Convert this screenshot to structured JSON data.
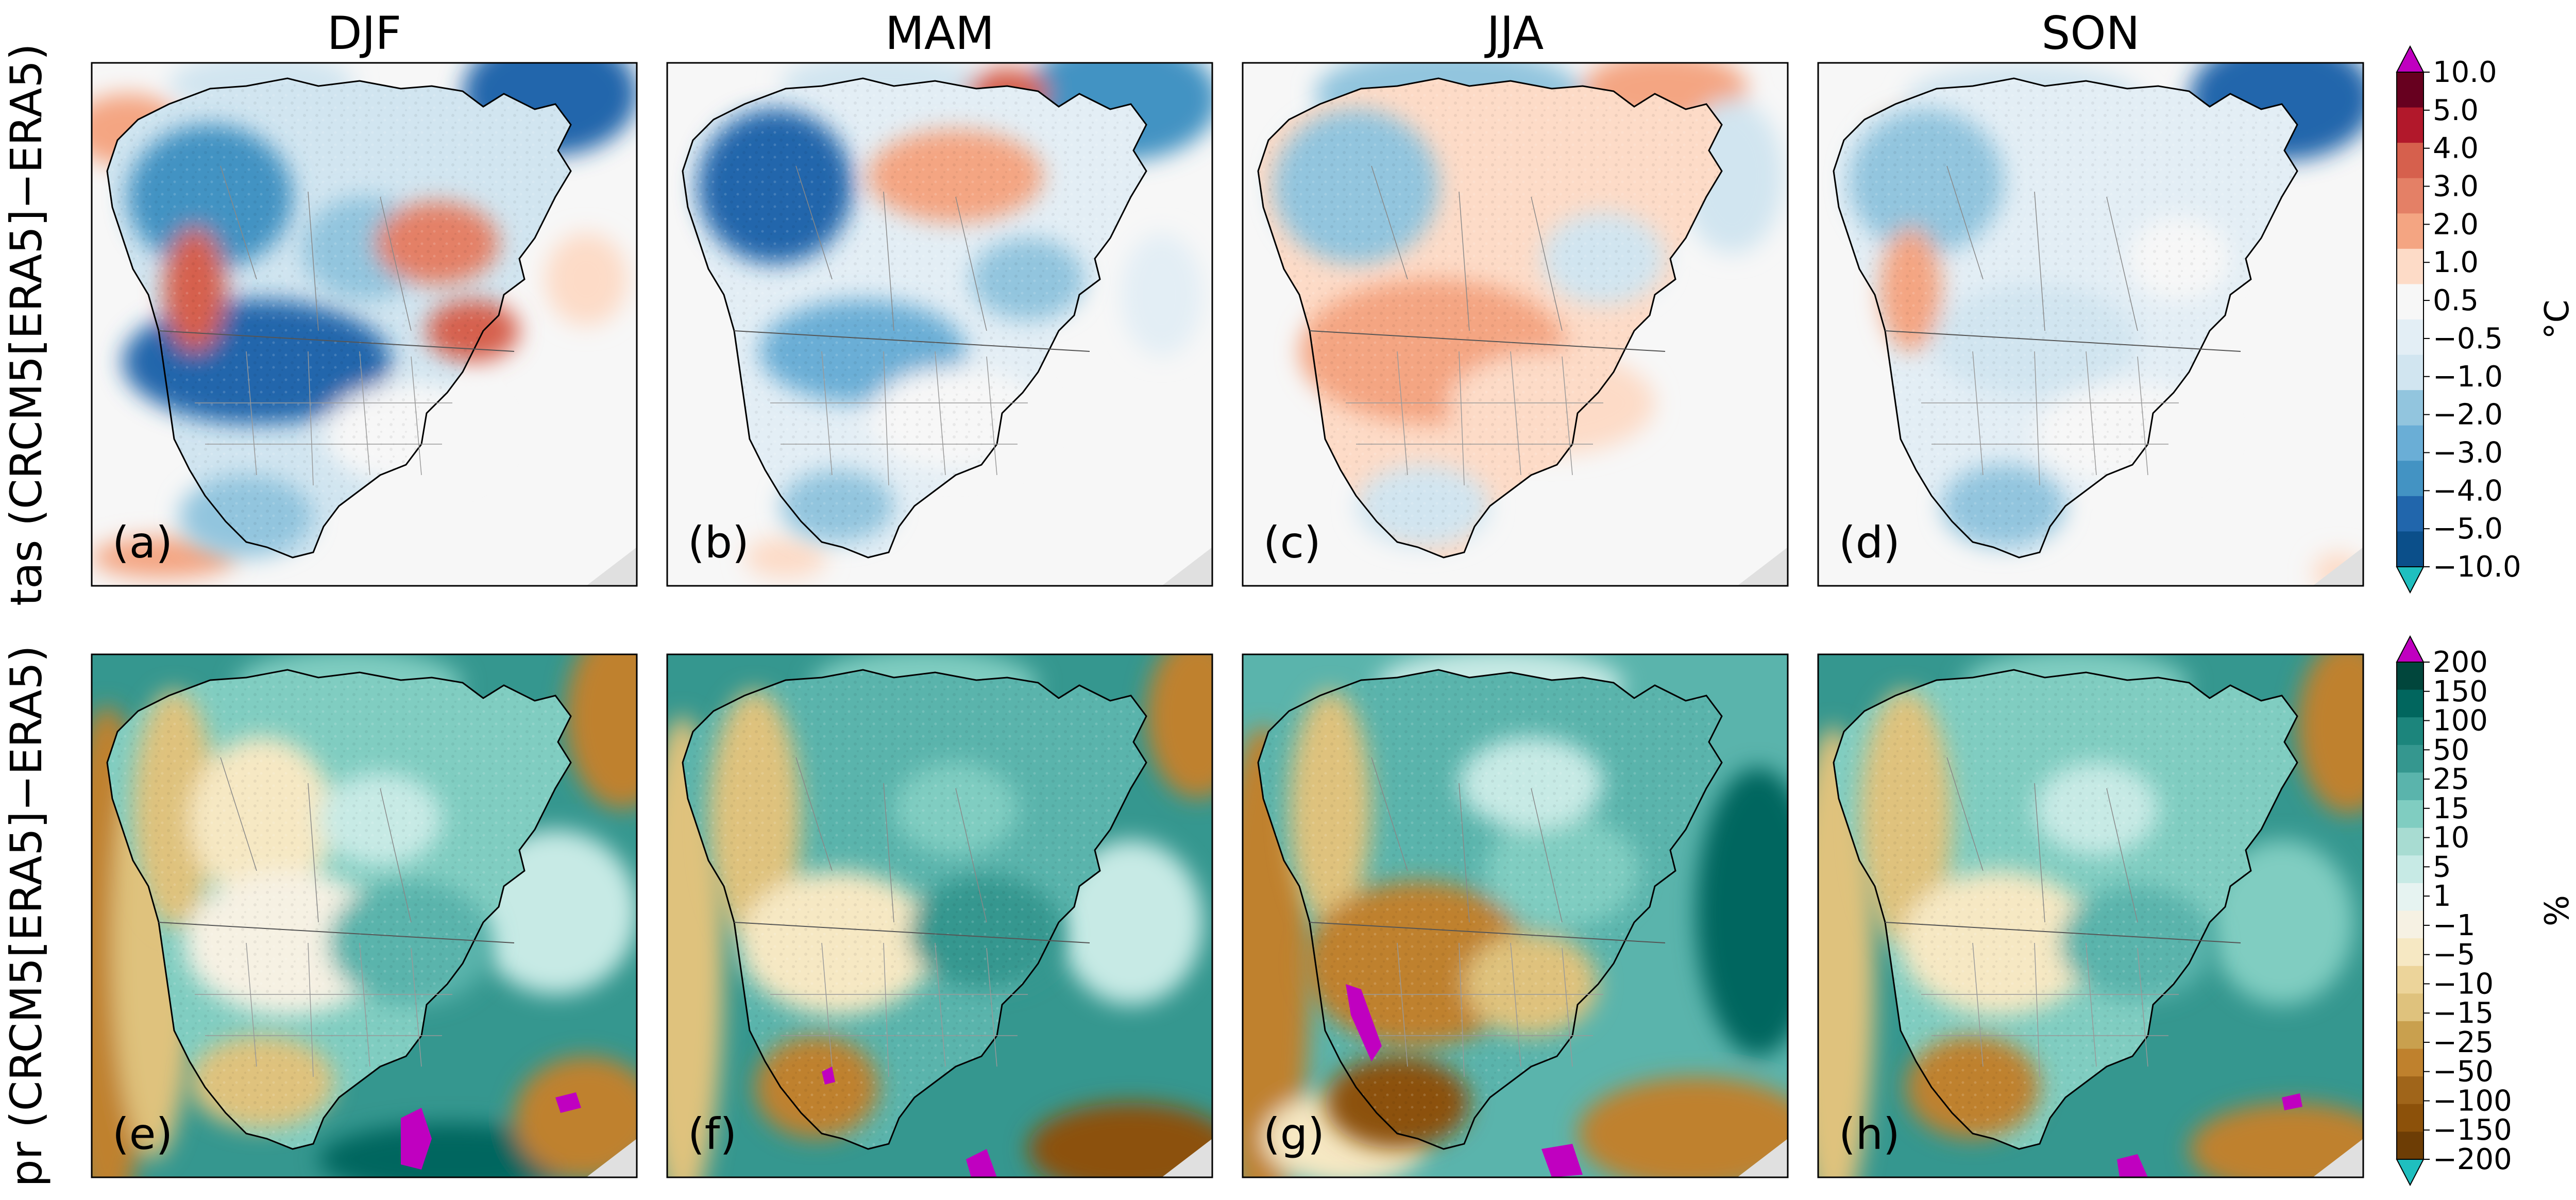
{
  "figure": {
    "seasons": [
      "DJF",
      "MAM",
      "JJA",
      "SON"
    ],
    "rows": [
      {
        "label": "tas (CRCM5[ERA5]−ERA5)",
        "variable": "tas",
        "panels": [
          "(a)",
          "(b)",
          "(c)",
          "(d)"
        ],
        "colorbar": {
          "unit": "°C",
          "levels": [
            "10.0",
            "5.0",
            "4.0",
            "3.0",
            "2.0",
            "1.0",
            "0.5",
            "−0.5",
            "−1.0",
            "−2.0",
            "−3.0",
            "−4.0",
            "−5.0",
            "−10.0"
          ],
          "colors": [
            "#67001f",
            "#b2182b",
            "#d6604d",
            "#e48066",
            "#f4a582",
            "#fddbc7",
            "#f7f7f7",
            "#e3eef5",
            "#d1e5f0",
            "#92c5de",
            "#6aaed6",
            "#4393c3",
            "#2166ac",
            "#0b4f8a"
          ],
          "over_color": "#c000c0",
          "under_color": "#1fbfbf"
        }
      },
      {
        "label": "pr (CRCM5[ERA5]−ERA5)",
        "variable": "pr",
        "panels": [
          "(e)",
          "(f)",
          "(g)",
          "(h)"
        ],
        "colorbar": {
          "unit": "%",
          "levels": [
            "200",
            "150",
            "100",
            "50",
            "25",
            "15",
            "10",
            "5",
            "1",
            "−1",
            "−5",
            "−10",
            "−15",
            "−25",
            "−50",
            "−100",
            "−150",
            "−200"
          ],
          "colors": [
            "#01463c",
            "#01665e",
            "#1c857c",
            "#35978f",
            "#5ab4ac",
            "#80cdc1",
            "#a8dcd2",
            "#c7eae5",
            "#e6f3f1",
            "#f6f1e3",
            "#f6e8c3",
            "#ecd49a",
            "#dfc27d",
            "#c9a04e",
            "#bf812d",
            "#a0651a",
            "#8c510a",
            "#6d3d05"
          ],
          "over_color": "#c000c0",
          "under_color": "#1fbfbf"
        }
      }
    ]
  }
}
